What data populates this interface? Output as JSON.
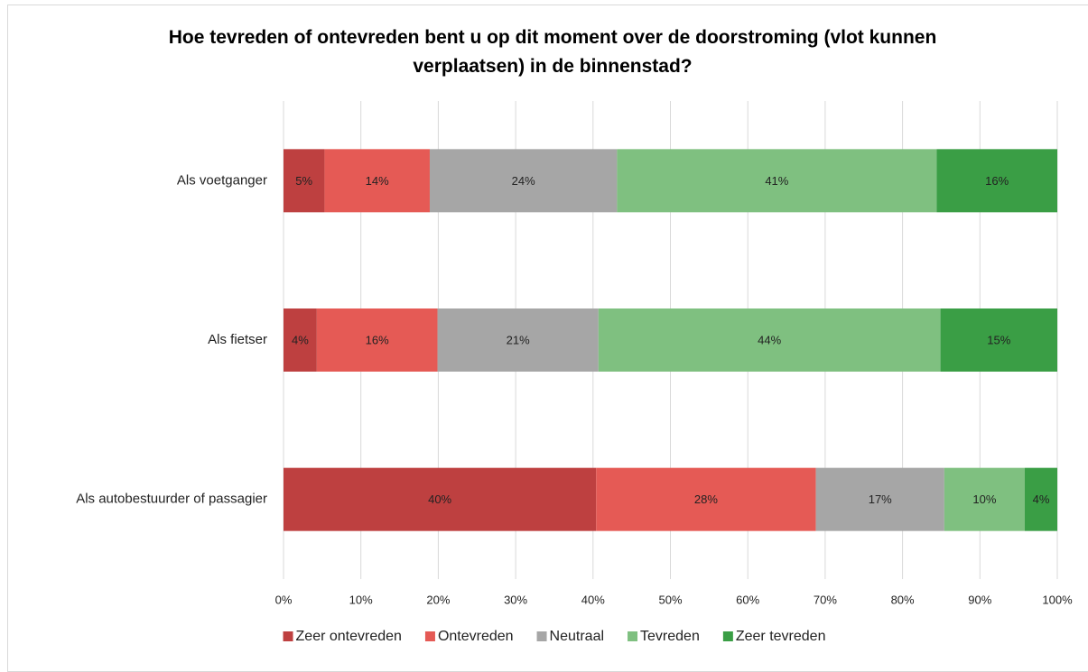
{
  "chart_data": {
    "type": "stacked-barh",
    "title": "Hoe tevreden of ontevreden bent u op dit moment over de doorstroming (vlot kunnen verplaatsen) in de binnenstad?",
    "categories": [
      "Als voetganger",
      "Als fietser",
      "Als autobestuurder of passagier"
    ],
    "series": [
      {
        "name": "Zeer ontevreden",
        "color": "#be4040",
        "values": [
          5.3,
          4.3,
          40.4
        ],
        "value_labels": [
          "5%",
          "4%",
          "40%"
        ]
      },
      {
        "name": "Ontevreden",
        "color": "#e55a55",
        "values": [
          13.6,
          15.6,
          28.4
        ],
        "value_labels": [
          "14%",
          "16%",
          "28%"
        ]
      },
      {
        "name": "Neutraal",
        "color": "#a6a6a6",
        "values": [
          24.2,
          20.8,
          16.6
        ],
        "value_labels": [
          "24%",
          "21%",
          "17%"
        ]
      },
      {
        "name": "Tevreden",
        "color": "#7fc080",
        "values": [
          41.3,
          44.2,
          10.4
        ],
        "value_labels": [
          "41%",
          "44%",
          "10%"
        ]
      },
      {
        "name": "Zeer tevreden",
        "color": "#3a9e45",
        "values": [
          15.6,
          15.1,
          4.2
        ],
        "value_labels": [
          "16%",
          "15%",
          "4%"
        ]
      }
    ],
    "xlim": [
      0,
      100
    ],
    "xticks": [
      {
        "value": 0,
        "label": "0%"
      },
      {
        "value": 10,
        "label": "10%"
      },
      {
        "value": 20,
        "label": "20%"
      },
      {
        "value": 30,
        "label": "30%"
      },
      {
        "value": 40,
        "label": "40%"
      },
      {
        "value": 50,
        "label": "50%"
      },
      {
        "value": 60,
        "label": "60%"
      },
      {
        "value": 70,
        "label": "70%"
      },
      {
        "value": 80,
        "label": "80%"
      },
      {
        "value": 90,
        "label": "90%"
      },
      {
        "value": 100,
        "label": "100%"
      }
    ],
    "grid": true,
    "legend": "bottom"
  }
}
